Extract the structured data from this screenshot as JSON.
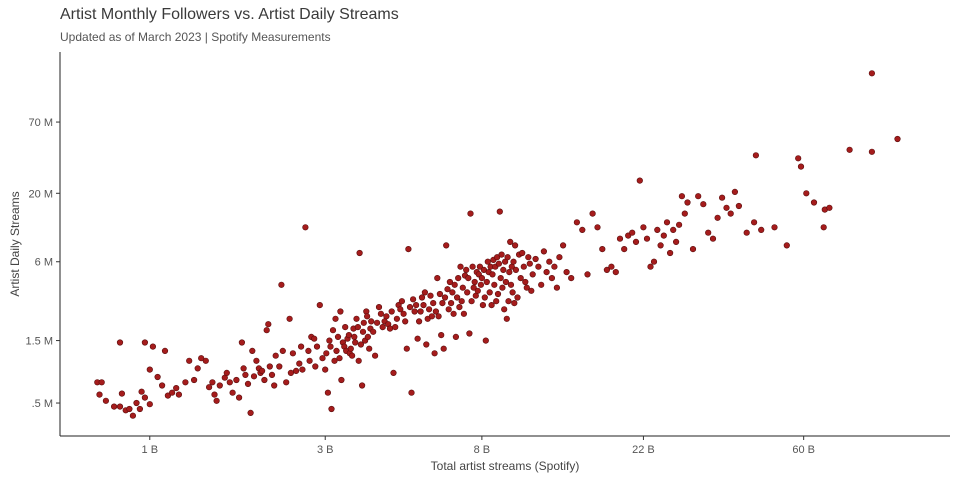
{
  "chart_data": {
    "type": "scatter",
    "title": "Artist Monthly Followers vs. Artist Daily Streams",
    "subtitle": "Updated as of March 2023 | Spotify Measurements",
    "xlabel": "Total artist streams (Spotify)",
    "ylabel": "Artist Daily Streams",
    "x_scale": "log",
    "y_scale": "log",
    "x_ticks": [
      {
        "value": 1,
        "label": "1 B"
      },
      {
        "value": 3,
        "label": "3 B"
      },
      {
        "value": 8,
        "label": "8 B"
      },
      {
        "value": 22,
        "label": "22 B"
      },
      {
        "value": 60,
        "label": "60 B"
      }
    ],
    "y_ticks": [
      {
        "value": 0.5,
        "label": ".5 M"
      },
      {
        "value": 1.5,
        "label": "1.5 M"
      },
      {
        "value": 6,
        "label": "6 M"
      },
      {
        "value": 20,
        "label": "20 M"
      },
      {
        "value": 70,
        "label": "70 M"
      }
    ],
    "xlim": [
      0.57,
      150
    ],
    "ylim": [
      0.28,
      240
    ],
    "grid": false,
    "point_color": "#a51c1c",
    "points": [
      [
        0.72,
        0.72
      ],
      [
        0.74,
        0.72
      ],
      [
        0.73,
        0.58
      ],
      [
        0.76,
        0.52
      ],
      [
        0.8,
        0.47
      ],
      [
        0.83,
        0.47
      ],
      [
        0.84,
        0.59
      ],
      [
        0.86,
        0.44
      ],
      [
        0.88,
        0.45
      ],
      [
        0.9,
        0.4
      ],
      [
        0.92,
        0.5
      ],
      [
        0.94,
        0.45
      ],
      [
        0.95,
        0.61
      ],
      [
        0.97,
        0.55
      ],
      [
        1.0,
        0.49
      ],
      [
        1.0,
        0.9
      ],
      [
        0.83,
        1.45
      ],
      [
        0.97,
        1.45
      ],
      [
        1.02,
        1.35
      ],
      [
        1.05,
        0.79
      ],
      [
        1.08,
        0.68
      ],
      [
        1.1,
        1.25
      ],
      [
        1.12,
        0.57
      ],
      [
        1.15,
        0.6
      ],
      [
        1.18,
        0.65
      ],
      [
        1.2,
        0.58
      ],
      [
        1.25,
        0.72
      ],
      [
        1.28,
        1.05
      ],
      [
        1.32,
        0.75
      ],
      [
        1.35,
        0.92
      ],
      [
        1.38,
        1.1
      ],
      [
        1.42,
        1.05
      ],
      [
        1.45,
        0.66
      ],
      [
        1.48,
        0.72
      ],
      [
        1.5,
        0.58
      ],
      [
        1.52,
        0.52
      ],
      [
        1.55,
        0.68
      ],
      [
        1.6,
        0.78
      ],
      [
        1.62,
        0.85
      ],
      [
        1.65,
        0.72
      ],
      [
        1.68,
        0.6
      ],
      [
        1.72,
        0.75
      ],
      [
        1.75,
        0.55
      ],
      [
        1.78,
        1.45
      ],
      [
        1.8,
        0.92
      ],
      [
        1.82,
        0.82
      ],
      [
        1.85,
        0.7
      ],
      [
        1.88,
        0.42
      ],
      [
        1.9,
        1.25
      ],
      [
        1.92,
        0.8
      ],
      [
        1.95,
        1.05
      ],
      [
        1.98,
        0.92
      ],
      [
        2.0,
        0.85
      ],
      [
        2.02,
        0.88
      ],
      [
        2.05,
        0.75
      ],
      [
        2.08,
        1.8
      ],
      [
        2.1,
        2.0
      ],
      [
        2.12,
        0.95
      ],
      [
        2.15,
        0.82
      ],
      [
        2.18,
        0.68
      ],
      [
        2.2,
        1.15
      ],
      [
        2.25,
        0.95
      ],
      [
        2.28,
        4.0
      ],
      [
        2.3,
        1.25
      ],
      [
        2.35,
        0.72
      ],
      [
        2.4,
        2.2
      ],
      [
        2.42,
        0.85
      ],
      [
        2.45,
        1.2
      ],
      [
        2.5,
        0.88
      ],
      [
        2.55,
        1.0
      ],
      [
        2.58,
        1.35
      ],
      [
        2.6,
        0.9
      ],
      [
        2.65,
        11.0
      ],
      [
        2.7,
        1.25
      ],
      [
        2.72,
        1.05
      ],
      [
        2.75,
        1.6
      ],
      [
        2.8,
        1.55
      ],
      [
        2.82,
        0.95
      ],
      [
        2.85,
        1.35
      ],
      [
        2.9,
        2.8
      ],
      [
        2.95,
        1.1
      ],
      [
        3.0,
        0.9
      ],
      [
        3.02,
        1.2
      ],
      [
        3.05,
        0.6
      ],
      [
        3.08,
        1.5
      ],
      [
        3.1,
        1.35
      ],
      [
        3.12,
        0.45
      ],
      [
        3.15,
        1.8
      ],
      [
        3.18,
        1.05
      ],
      [
        3.2,
        2.2
      ],
      [
        3.22,
        1.25
      ],
      [
        3.25,
        1.6
      ],
      [
        3.28,
        1.1
      ],
      [
        3.3,
        2.5
      ],
      [
        3.32,
        0.75
      ],
      [
        3.35,
        1.45
      ],
      [
        3.38,
        1.35
      ],
      [
        3.4,
        1.9
      ],
      [
        3.42,
        1.25
      ],
      [
        3.45,
        1.55
      ],
      [
        3.48,
        1.65
      ],
      [
        3.5,
        1.2
      ],
      [
        3.52,
        1.3
      ],
      [
        3.55,
        1.15
      ],
      [
        3.58,
        1.85
      ],
      [
        3.6,
        1.6
      ],
      [
        3.62,
        1.45
      ],
      [
        3.65,
        2.2
      ],
      [
        3.68,
        1.9
      ],
      [
        3.7,
        1.05
      ],
      [
        3.72,
        7.0
      ],
      [
        3.75,
        1.4
      ],
      [
        3.78,
        0.68
      ],
      [
        3.8,
        1.75
      ],
      [
        3.82,
        2.05
      ],
      [
        3.85,
        1.5
      ],
      [
        3.88,
        2.5
      ],
      [
        3.9,
        2.3
      ],
      [
        3.92,
        1.6
      ],
      [
        3.95,
        1.3
      ],
      [
        3.98,
        1.85
      ],
      [
        4.0,
        2.1
      ],
      [
        4.05,
        1.75
      ],
      [
        4.1,
        1.15
      ],
      [
        4.15,
        2.05
      ],
      [
        4.2,
        2.7
      ],
      [
        4.25,
        2.4
      ],
      [
        4.3,
        1.9
      ],
      [
        4.35,
        2.1
      ],
      [
        4.4,
        2.3
      ],
      [
        4.45,
        2.0
      ],
      [
        4.5,
        1.85
      ],
      [
        4.55,
        2.5
      ],
      [
        4.6,
        0.85
      ],
      [
        4.65,
        1.9
      ],
      [
        4.7,
        2.2
      ],
      [
        4.75,
        2.8
      ],
      [
        4.8,
        2.6
      ],
      [
        4.85,
        3.0
      ],
      [
        4.9,
        2.4
      ],
      [
        4.95,
        2.1
      ],
      [
        5.0,
        1.3
      ],
      [
        5.05,
        7.5
      ],
      [
        5.1,
        2.7
      ],
      [
        5.15,
        0.6
      ],
      [
        5.2,
        3.1
      ],
      [
        5.25,
        2.5
      ],
      [
        5.3,
        2.8
      ],
      [
        5.35,
        1.55
      ],
      [
        5.4,
        2.1
      ],
      [
        5.45,
        2.5
      ],
      [
        5.5,
        3.2
      ],
      [
        5.55,
        2.8
      ],
      [
        5.6,
        3.5
      ],
      [
        5.65,
        1.4
      ],
      [
        5.7,
        2.2
      ],
      [
        5.75,
        2.6
      ],
      [
        5.8,
        3.3
      ],
      [
        5.85,
        2.3
      ],
      [
        5.9,
        2.9
      ],
      [
        5.95,
        1.2
      ],
      [
        6.0,
        2.5
      ],
      [
        6.05,
        4.5
      ],
      [
        6.1,
        2.3
      ],
      [
        6.15,
        3.4
      ],
      [
        6.2,
        1.65
      ],
      [
        6.25,
        2.9
      ],
      [
        6.3,
        1.3
      ],
      [
        6.35,
        3.2
      ],
      [
        6.4,
        8.0
      ],
      [
        6.45,
        3.7
      ],
      [
        6.5,
        2.6
      ],
      [
        6.55,
        4.2
      ],
      [
        6.6,
        2.9
      ],
      [
        6.65,
        3.5
      ],
      [
        6.7,
        2.4
      ],
      [
        6.75,
        4.0
      ],
      [
        6.8,
        1.6
      ],
      [
        6.85,
        3.2
      ],
      [
        6.9,
        4.5
      ],
      [
        6.95,
        2.7
      ],
      [
        7.0,
        5.5
      ],
      [
        7.05,
        3.0
      ],
      [
        7.1,
        3.8
      ],
      [
        7.15,
        2.4
      ],
      [
        7.2,
        4.7
      ],
      [
        7.25,
        5.2
      ],
      [
        7.3,
        3.5
      ],
      [
        7.35,
        4.5
      ],
      [
        7.4,
        1.7
      ],
      [
        7.45,
        14.0
      ],
      [
        7.5,
        3.0
      ],
      [
        7.55,
        5.5
      ],
      [
        7.6,
        3.8
      ],
      [
        7.65,
        4.2
      ],
      [
        7.7,
        3.3
      ],
      [
        7.75,
        5.0
      ],
      [
        7.8,
        3.6
      ],
      [
        7.85,
        4.8
      ],
      [
        7.9,
        5.5
      ],
      [
        7.95,
        4.0
      ],
      [
        8.0,
        4.5
      ],
      [
        8.05,
        2.8
      ],
      [
        8.1,
        5.2
      ],
      [
        8.15,
        3.2
      ],
      [
        8.2,
        1.5
      ],
      [
        8.25,
        4.2
      ],
      [
        8.3,
        6.0
      ],
      [
        8.35,
        5.0
      ],
      [
        8.4,
        3.5
      ],
      [
        8.45,
        5.5
      ],
      [
        8.5,
        2.8
      ],
      [
        8.55,
        4.8
      ],
      [
        8.6,
        6.2
      ],
      [
        8.65,
        4.0
      ],
      [
        8.7,
        5.5
      ],
      [
        8.75,
        3.0
      ],
      [
        8.8,
        6.5
      ],
      [
        8.85,
        3.4
      ],
      [
        8.9,
        5.8
      ],
      [
        8.95,
        14.5
      ],
      [
        9.0,
        4.5
      ],
      [
        9.05,
        6.8
      ],
      [
        9.1,
        3.8
      ],
      [
        9.15,
        5.2
      ],
      [
        9.2,
        2.6
      ],
      [
        9.25,
        6.0
      ],
      [
        9.3,
        4.2
      ],
      [
        9.35,
        2.2
      ],
      [
        9.4,
        6.5
      ],
      [
        9.45,
        3.0
      ],
      [
        9.5,
        5.0
      ],
      [
        9.55,
        8.5
      ],
      [
        9.6,
        4.0
      ],
      [
        9.65,
        5.5
      ],
      [
        9.7,
        3.5
      ],
      [
        9.75,
        6.0
      ],
      [
        9.8,
        2.9
      ],
      [
        9.85,
        8.0
      ],
      [
        9.9,
        5.2
      ],
      [
        10.0,
        3.2
      ],
      [
        10.1,
        6.8
      ],
      [
        10.2,
        4.5
      ],
      [
        10.3,
        7.0
      ],
      [
        10.4,
        5.5
      ],
      [
        10.5,
        4.2
      ],
      [
        10.6,
        3.8
      ],
      [
        10.7,
        6.5
      ],
      [
        10.8,
        5.8
      ],
      [
        10.9,
        3.6
      ],
      [
        11.0,
        4.8
      ],
      [
        11.2,
        6.3
      ],
      [
        11.4,
        5.5
      ],
      [
        11.6,
        4.0
      ],
      [
        11.8,
        7.2
      ],
      [
        12.0,
        5.0
      ],
      [
        12.2,
        6.0
      ],
      [
        12.4,
        4.5
      ],
      [
        12.6,
        5.5
      ],
      [
        12.8,
        3.8
      ],
      [
        13.0,
        6.5
      ],
      [
        13.3,
        8.0
      ],
      [
        13.6,
        5.0
      ],
      [
        14.0,
        4.5
      ],
      [
        14.5,
        12.0
      ],
      [
        15.0,
        10.5
      ],
      [
        15.5,
        4.8
      ],
      [
        16.0,
        14.0
      ],
      [
        16.5,
        11.0
      ],
      [
        17.0,
        7.5
      ],
      [
        17.5,
        5.2
      ],
      [
        18.0,
        5.5
      ],
      [
        18.5,
        5.0
      ],
      [
        19.0,
        9.0
      ],
      [
        19.5,
        7.5
      ],
      [
        20.0,
        9.5
      ],
      [
        20.5,
        10.0
      ],
      [
        21.0,
        8.5
      ],
      [
        21.5,
        25.0
      ],
      [
        22.0,
        11.0
      ],
      [
        22.5,
        9.0
      ],
      [
        23.0,
        5.5
      ],
      [
        23.5,
        6.0
      ],
      [
        24.0,
        10.5
      ],
      [
        24.5,
        8.0
      ],
      [
        25.0,
        9.5
      ],
      [
        25.5,
        12.0
      ],
      [
        26.0,
        7.0
      ],
      [
        26.5,
        10.5
      ],
      [
        27.0,
        8.5
      ],
      [
        27.5,
        11.5
      ],
      [
        28.0,
        19.0
      ],
      [
        28.5,
        14.0
      ],
      [
        29.0,
        17.0
      ],
      [
        30.0,
        7.5
      ],
      [
        31.0,
        19.0
      ],
      [
        32.0,
        16.5
      ],
      [
        33.0,
        10.0
      ],
      [
        34.0,
        9.0
      ],
      [
        35.0,
        13.0
      ],
      [
        36.0,
        18.5
      ],
      [
        37.0,
        15.5
      ],
      [
        38.0,
        14.0
      ],
      [
        39.0,
        20.5
      ],
      [
        40.0,
        16.0
      ],
      [
        42.0,
        10.0
      ],
      [
        44.0,
        12.0
      ],
      [
        44.5,
        39.0
      ],
      [
        46.0,
        10.5
      ],
      [
        50.0,
        11.0
      ],
      [
        54.0,
        8.0
      ],
      [
        58.0,
        37.0
      ],
      [
        59.0,
        32.0
      ],
      [
        61.0,
        20.0
      ],
      [
        64.0,
        17.0
      ],
      [
        68.0,
        11.0
      ],
      [
        68.5,
        15.0
      ],
      [
        70.5,
        15.5
      ],
      [
        80.0,
        43.0
      ],
      [
        92.0,
        165.0
      ],
      [
        92.0,
        41.5
      ],
      [
        108.0,
        52.0
      ]
    ]
  }
}
